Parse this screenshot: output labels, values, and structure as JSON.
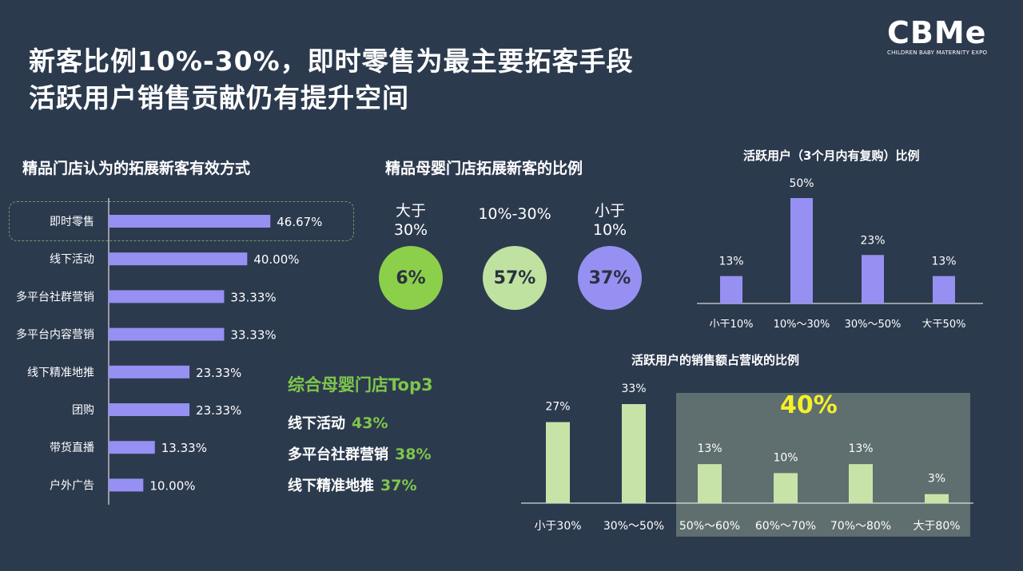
{
  "title": {
    "line1": "新客比例10%-30%，即时零售为最主要拓客手段",
    "line2": "活跃用户销售贡献仍有提升空间"
  },
  "logo": {
    "mark": "CBMe",
    "subtitle": "CHILDREN BABY MATERNITY EXPO"
  },
  "colors": {
    "background": "#2c3a4e",
    "purple": "#9690f2",
    "lightgreen": "#c8e3a8",
    "green": "#7fc64c",
    "circle_green": "#8ccf4a",
    "circle_light": "#bfe2a0",
    "yellow": "#f4f02a",
    "shade": "#5f6e6e"
  },
  "left": {
    "title": "精品门店认为的拓展新客有效方式"
  },
  "middle": {
    "title": "精品母婴门店拓展新客的比例",
    "circles": [
      {
        "label": "大于\n30%",
        "value": "6%"
      },
      {
        "label": "10%-30%",
        "value": "57%"
      },
      {
        "label": "小于\n10%",
        "value": "37%"
      }
    ]
  },
  "top3": {
    "title": "综合母婴门店Top3",
    "items": [
      {
        "label": "线下活动",
        "value": "43%"
      },
      {
        "label": "多平台社群营销",
        "value": "38%"
      },
      {
        "label": "线下精准地推",
        "value": "37%"
      }
    ]
  },
  "top_right": {
    "title": "活跃用户（3个月内有复购）比例"
  },
  "bottom_right": {
    "title": "活跃用户的销售额占营收的比例",
    "highlight": "40%"
  },
  "chart_data": [
    {
      "type": "bar",
      "orientation": "horizontal",
      "title": "精品门店认为的拓展新客有效方式",
      "categories": [
        "即时零售",
        "线下活动",
        "多平台社群营销",
        "多平台内容营销",
        "线下精准地推",
        "团购",
        "带货直播",
        "户外广告"
      ],
      "values": [
        46.67,
        40.0,
        33.33,
        33.33,
        23.33,
        23.33,
        13.33,
        10.0
      ],
      "labels": [
        "46.67%",
        "40.00%",
        "33.33%",
        "33.33%",
        "23.33%",
        "23.33%",
        "13.33%",
        "10.00%"
      ],
      "xlim": [
        0,
        60
      ]
    },
    {
      "type": "bar",
      "title": "活跃用户（3个月内有复购）比例",
      "categories": [
        "小于10%",
        "10%～30%",
        "30%～50%",
        "大于50%"
      ],
      "values": [
        13,
        50,
        23,
        13
      ],
      "labels": [
        "13%",
        "50%",
        "23%",
        "13%"
      ],
      "ylim": [
        0,
        50
      ]
    },
    {
      "type": "bar",
      "title": "活跃用户的销售额占营收的比例",
      "categories": [
        "小于30%",
        "30%～50%",
        "50%～60%",
        "60%～70%",
        "70%～80%",
        "大于80%"
      ],
      "values": [
        27,
        33,
        13,
        10,
        13,
        3
      ],
      "labels": [
        "27%",
        "33%",
        "13%",
        "10%",
        "13%",
        "3%"
      ],
      "ylim": [
        0,
        33
      ]
    }
  ]
}
